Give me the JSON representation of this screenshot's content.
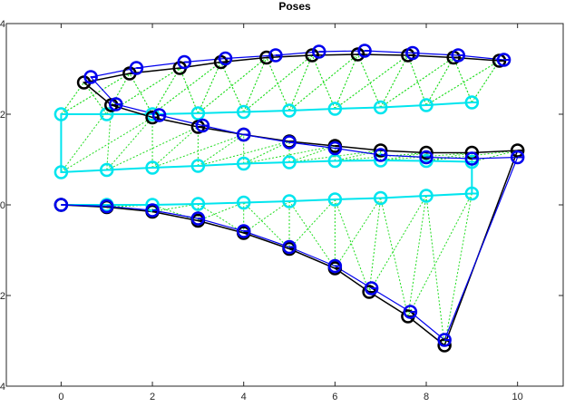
{
  "chart_data": {
    "type": "scatter",
    "title": "Poses",
    "xlabel": "",
    "ylabel": "",
    "xlim": [
      -1.2,
      11
    ],
    "ylim": [
      -4,
      4
    ],
    "xticks": [
      0,
      2,
      4,
      6,
      8,
      10
    ],
    "yticks": [
      -4,
      -2,
      0,
      2,
      4
    ],
    "grid": false,
    "legend": "none",
    "colors": {
      "black_path": "#000000",
      "blue_path": "#0000ee",
      "cyan_path": "#00e5ee",
      "green_links": "#22dd22"
    },
    "series": [
      {
        "style": "cyan",
        "points": [
          [
            0,
            0
          ],
          [
            1,
            0
          ],
          [
            2,
            0
          ],
          [
            3,
            0.02
          ],
          [
            4,
            0.05
          ],
          [
            5,
            0.08
          ],
          [
            6,
            0.12
          ],
          [
            7,
            0.15
          ],
          [
            8,
            0.2
          ],
          [
            9,
            0.25
          ],
          [
            9,
            0.95
          ],
          [
            8,
            0.97
          ],
          [
            7,
            0.98
          ],
          [
            6,
            0.97
          ],
          [
            5,
            0.94
          ],
          [
            4,
            0.91
          ],
          [
            3,
            0.86
          ],
          [
            2,
            0.82
          ],
          [
            1,
            0.77
          ],
          [
            0,
            0.72
          ],
          [
            0,
            2.0
          ],
          [
            1,
            2.0
          ],
          [
            2,
            2.0
          ],
          [
            3,
            2.02
          ],
          [
            4,
            2.05
          ],
          [
            5,
            2.08
          ],
          [
            6,
            2.12
          ],
          [
            7,
            2.15
          ],
          [
            8,
            2.2
          ],
          [
            9,
            2.26
          ]
        ]
      },
      {
        "style": "black",
        "points": [
          [
            0,
            0
          ],
          [
            1,
            -0.05
          ],
          [
            2,
            -0.15
          ],
          [
            3,
            -0.35
          ],
          [
            4,
            -0.62
          ],
          [
            5,
            -0.97
          ],
          [
            6,
            -1.4
          ],
          [
            6.75,
            -1.92
          ],
          [
            7.6,
            -2.46
          ],
          [
            8.4,
            -3.1
          ],
          [
            10,
            1.2
          ],
          [
            9,
            1.15
          ],
          [
            8,
            1.15
          ],
          [
            7,
            1.2
          ],
          [
            6,
            1.3
          ],
          [
            5,
            1.4
          ],
          [
            4,
            1.55
          ],
          [
            3,
            1.72
          ],
          [
            2,
            1.93
          ],
          [
            1.1,
            2.2
          ],
          [
            0.5,
            2.7
          ],
          [
            1.5,
            2.9
          ],
          [
            2.6,
            3.02
          ],
          [
            3.5,
            3.15
          ],
          [
            4.5,
            3.25
          ],
          [
            5.5,
            3.3
          ],
          [
            6.5,
            3.32
          ],
          [
            7.6,
            3.3
          ],
          [
            8.6,
            3.25
          ],
          [
            9.6,
            3.18
          ]
        ]
      },
      {
        "style": "blue",
        "points": [
          [
            0,
            0
          ],
          [
            1,
            -0.03
          ],
          [
            2,
            -0.12
          ],
          [
            3,
            -0.3
          ],
          [
            4,
            -0.58
          ],
          [
            5,
            -0.93
          ],
          [
            6,
            -1.35
          ],
          [
            6.8,
            -1.84
          ],
          [
            7.65,
            -2.36
          ],
          [
            8.4,
            -2.98
          ],
          [
            10,
            1.05
          ],
          [
            9,
            1.02
          ],
          [
            8,
            1.05
          ],
          [
            7,
            1.1
          ],
          [
            6,
            1.25
          ],
          [
            5,
            1.38
          ],
          [
            4,
            1.55
          ],
          [
            3.1,
            1.75
          ],
          [
            2.15,
            1.98
          ],
          [
            1.2,
            2.22
          ],
          [
            0.65,
            2.82
          ],
          [
            1.65,
            3.02
          ],
          [
            2.7,
            3.15
          ],
          [
            3.6,
            3.23
          ],
          [
            4.7,
            3.3
          ],
          [
            5.65,
            3.38
          ],
          [
            6.65,
            3.4
          ],
          [
            7.7,
            3.35
          ],
          [
            8.7,
            3.3
          ],
          [
            9.7,
            3.2
          ]
        ]
      }
    ]
  }
}
